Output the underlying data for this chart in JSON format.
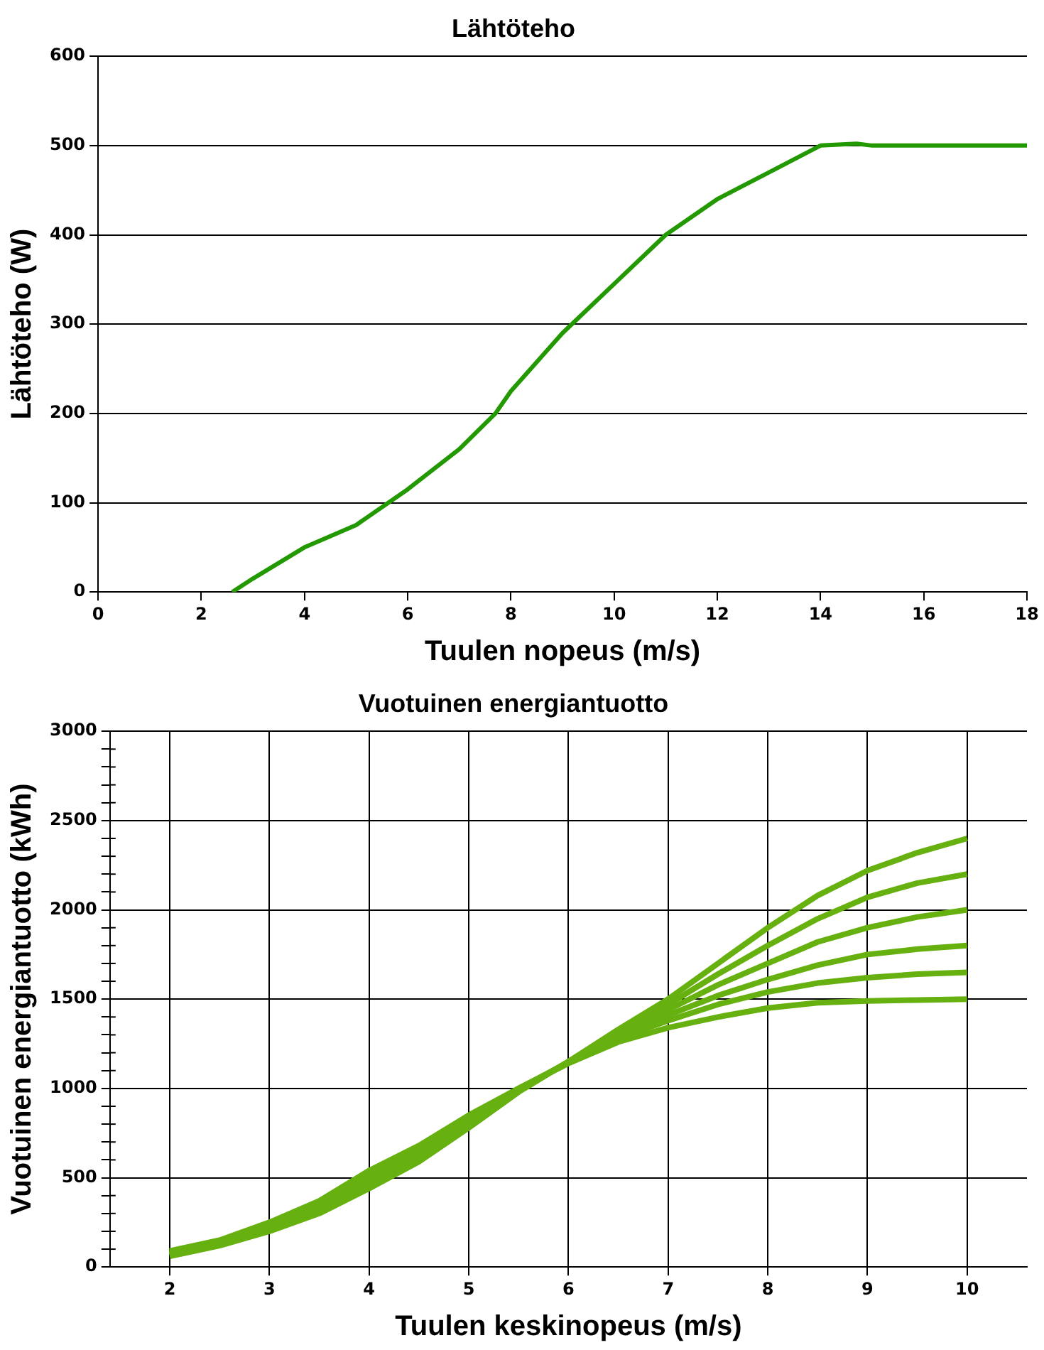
{
  "chart_data": [
    {
      "type": "line",
      "title": "Lähtöteho",
      "xlabel": "Tuulen nopeus (m/s)",
      "ylabel": "Lähtöteho (W)",
      "xlim": [
        0,
        18
      ],
      "xticks": [
        0,
        2,
        4,
        6,
        8,
        10,
        12,
        14,
        16,
        18
      ],
      "ylim": [
        0,
        600
      ],
      "yticks": [
        0,
        100,
        200,
        300,
        400,
        500,
        600
      ],
      "grid": "y",
      "legend": false,
      "marker": "none",
      "series": [
        {
          "color": "#229900",
          "x": [
            2.6,
            3,
            4,
            5,
            6,
            7,
            7.7,
            8,
            9,
            10,
            11,
            12,
            13,
            14,
            14.7,
            15,
            18
          ],
          "values": [
            0,
            15,
            50,
            75,
            115,
            160,
            200,
            225,
            290,
            345,
            400,
            440,
            470,
            500,
            502,
            500,
            500
          ]
        }
      ]
    },
    {
      "type": "line",
      "title": "Vuotuinen energiantuotto",
      "xlabel": "Tuulen keskinopeus (m/s)",
      "ylabel": "Vuotuinen energiantuotto (kWh)",
      "xlim": [
        1.4,
        10.6
      ],
      "xticks": [
        2,
        3,
        4,
        5,
        6,
        7,
        8,
        9,
        10
      ],
      "ylim": [
        0,
        3000
      ],
      "yticks": [
        0,
        {
          "value": 100,
          "label": null
        },
        {
          "value": 200,
          "label": null
        },
        {
          "value": 300,
          "label": null
        },
        {
          "value": 400,
          "label": null
        },
        500,
        {
          "value": 600,
          "label": null
        },
        {
          "value": 700,
          "label": null
        },
        {
          "value": 800,
          "label": null
        },
        {
          "value": 900,
          "label": null
        },
        1000,
        {
          "value": 1100,
          "label": null
        },
        {
          "value": 1200,
          "label": null
        },
        {
          "value": 1300,
          "label": null
        },
        {
          "value": 1400,
          "label": null
        },
        1500,
        {
          "value": 1600,
          "label": null
        },
        {
          "value": 1700,
          "label": null
        },
        {
          "value": 1800,
          "label": null
        },
        {
          "value": 1900,
          "label": null
        },
        2000,
        {
          "value": 2100,
          "label": null
        },
        {
          "value": 2200,
          "label": null
        },
        {
          "value": 2300,
          "label": null
        },
        {
          "value": 2400,
          "label": null
        },
        2500,
        {
          "value": 2600,
          "label": null
        },
        {
          "value": 2700,
          "label": null
        },
        {
          "value": 2800,
          "label": null
        },
        {
          "value": 2900,
          "label": null
        },
        3000
      ],
      "grid": true,
      "legend": false,
      "marker": "none",
      "x": [
        2,
        2.5,
        3,
        3.5,
        4,
        4.5,
        5,
        5.5,
        6,
        6.5,
        7,
        7.5,
        8,
        8.5,
        9,
        9.5,
        10
      ],
      "series": [
        {
          "color": "#66b010",
          "values": [
            60,
            120,
            200,
            300,
            440,
            590,
            780,
            980,
            1150,
            1330,
            1500,
            1700,
            1900,
            2080,
            2220,
            2320,
            2400
          ]
        },
        {
          "color": "#66b010",
          "values": [
            65,
            125,
            210,
            310,
            460,
            610,
            790,
            985,
            1150,
            1320,
            1470,
            1640,
            1800,
            1950,
            2070,
            2150,
            2200
          ]
        },
        {
          "color": "#66b010",
          "values": [
            70,
            130,
            220,
            325,
            480,
            630,
            805,
            990,
            1150,
            1310,
            1440,
            1580,
            1700,
            1820,
            1900,
            1960,
            2000
          ]
        },
        {
          "color": "#66b010",
          "values": [
            75,
            140,
            230,
            340,
            500,
            650,
            820,
            995,
            1145,
            1290,
            1410,
            1520,
            1610,
            1690,
            1750,
            1780,
            1800
          ]
        },
        {
          "color": "#66b010",
          "values": [
            80,
            145,
            240,
            355,
            520,
            665,
            835,
            1000,
            1145,
            1280,
            1380,
            1470,
            1540,
            1590,
            1620,
            1640,
            1650
          ]
        },
        {
          "color": "#66b010",
          "values": [
            90,
            150,
            250,
            370,
            540,
            680,
            850,
            1000,
            1140,
            1260,
            1340,
            1400,
            1450,
            1480,
            1490,
            1495,
            1500
          ]
        }
      ]
    }
  ]
}
